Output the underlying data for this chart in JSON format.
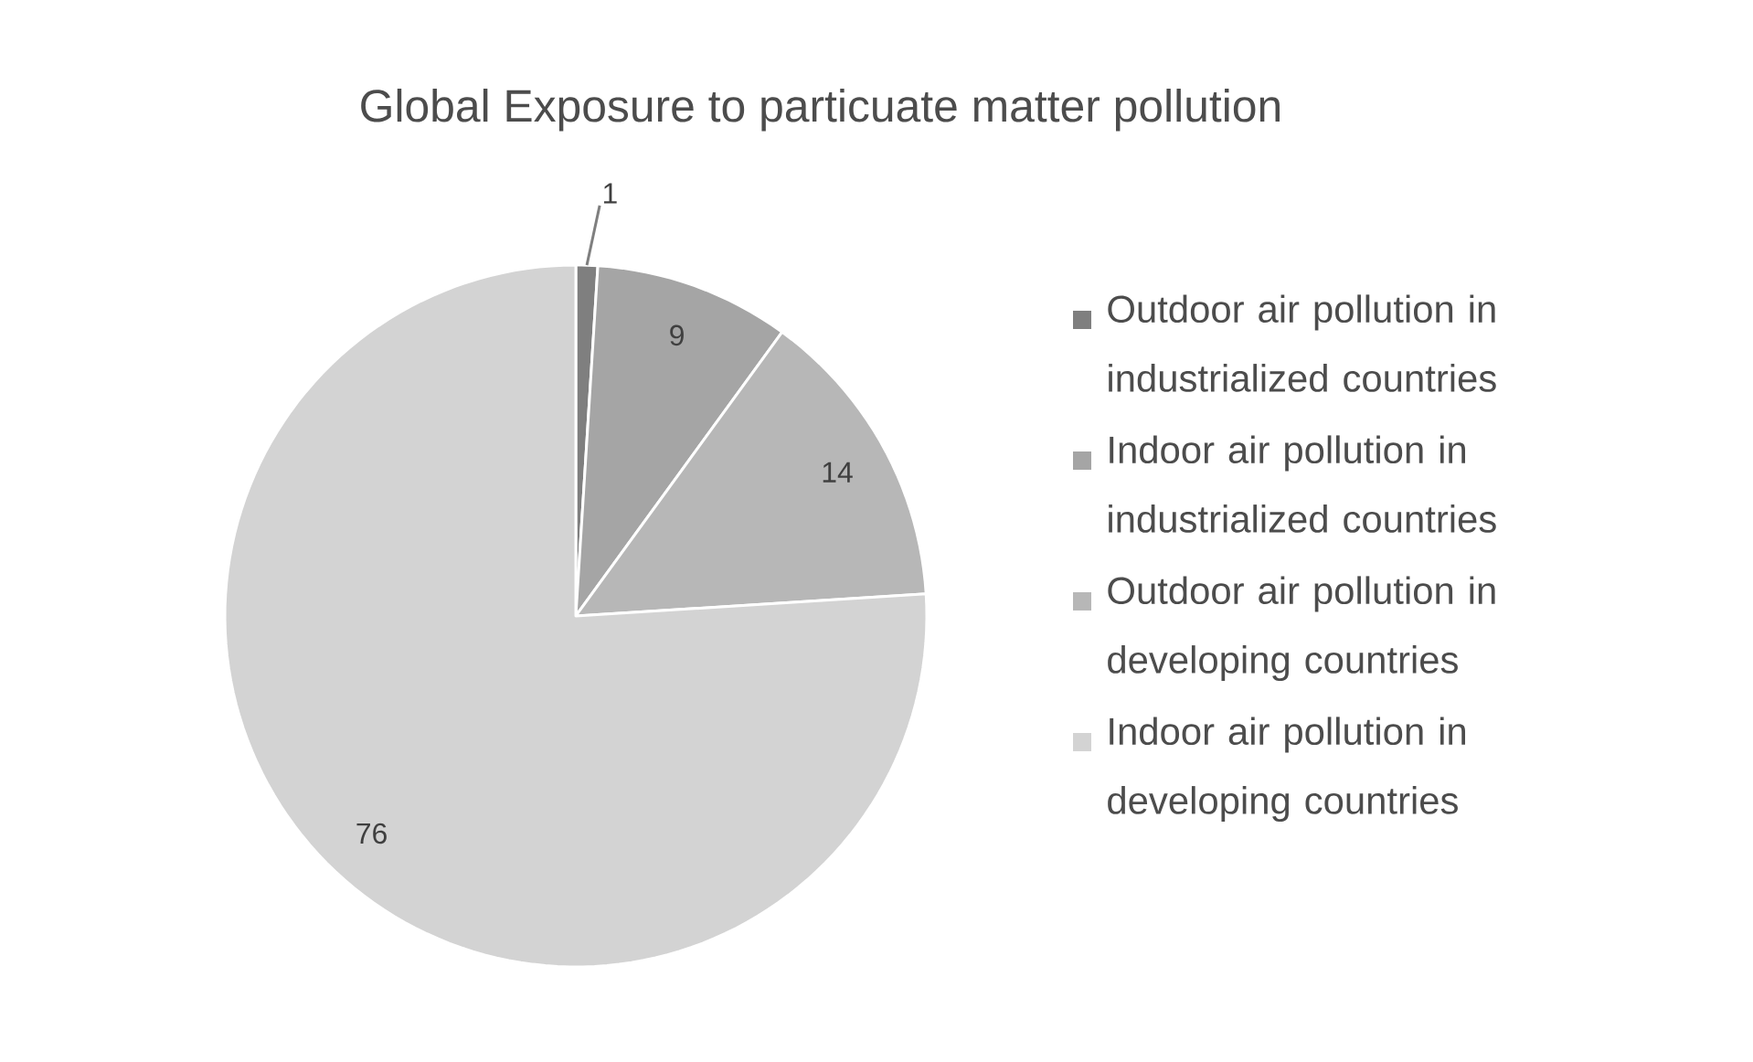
{
  "chart_data": {
    "type": "pie",
    "title": "Global Exposure to particuate matter pollution",
    "categories": [
      "Outdoor air pollution in industrialized countries",
      "Indoor air pollution in industrialized countries",
      "Outdoor air pollution in developing countries",
      "Indoor air pollution in developing countries"
    ],
    "values": [
      1,
      9,
      14,
      76
    ],
    "colors": [
      "#7f7f7f",
      "#a5a5a5",
      "#b7b7b7",
      "#d3d3d3"
    ],
    "data_labels": true,
    "legend": "right"
  }
}
